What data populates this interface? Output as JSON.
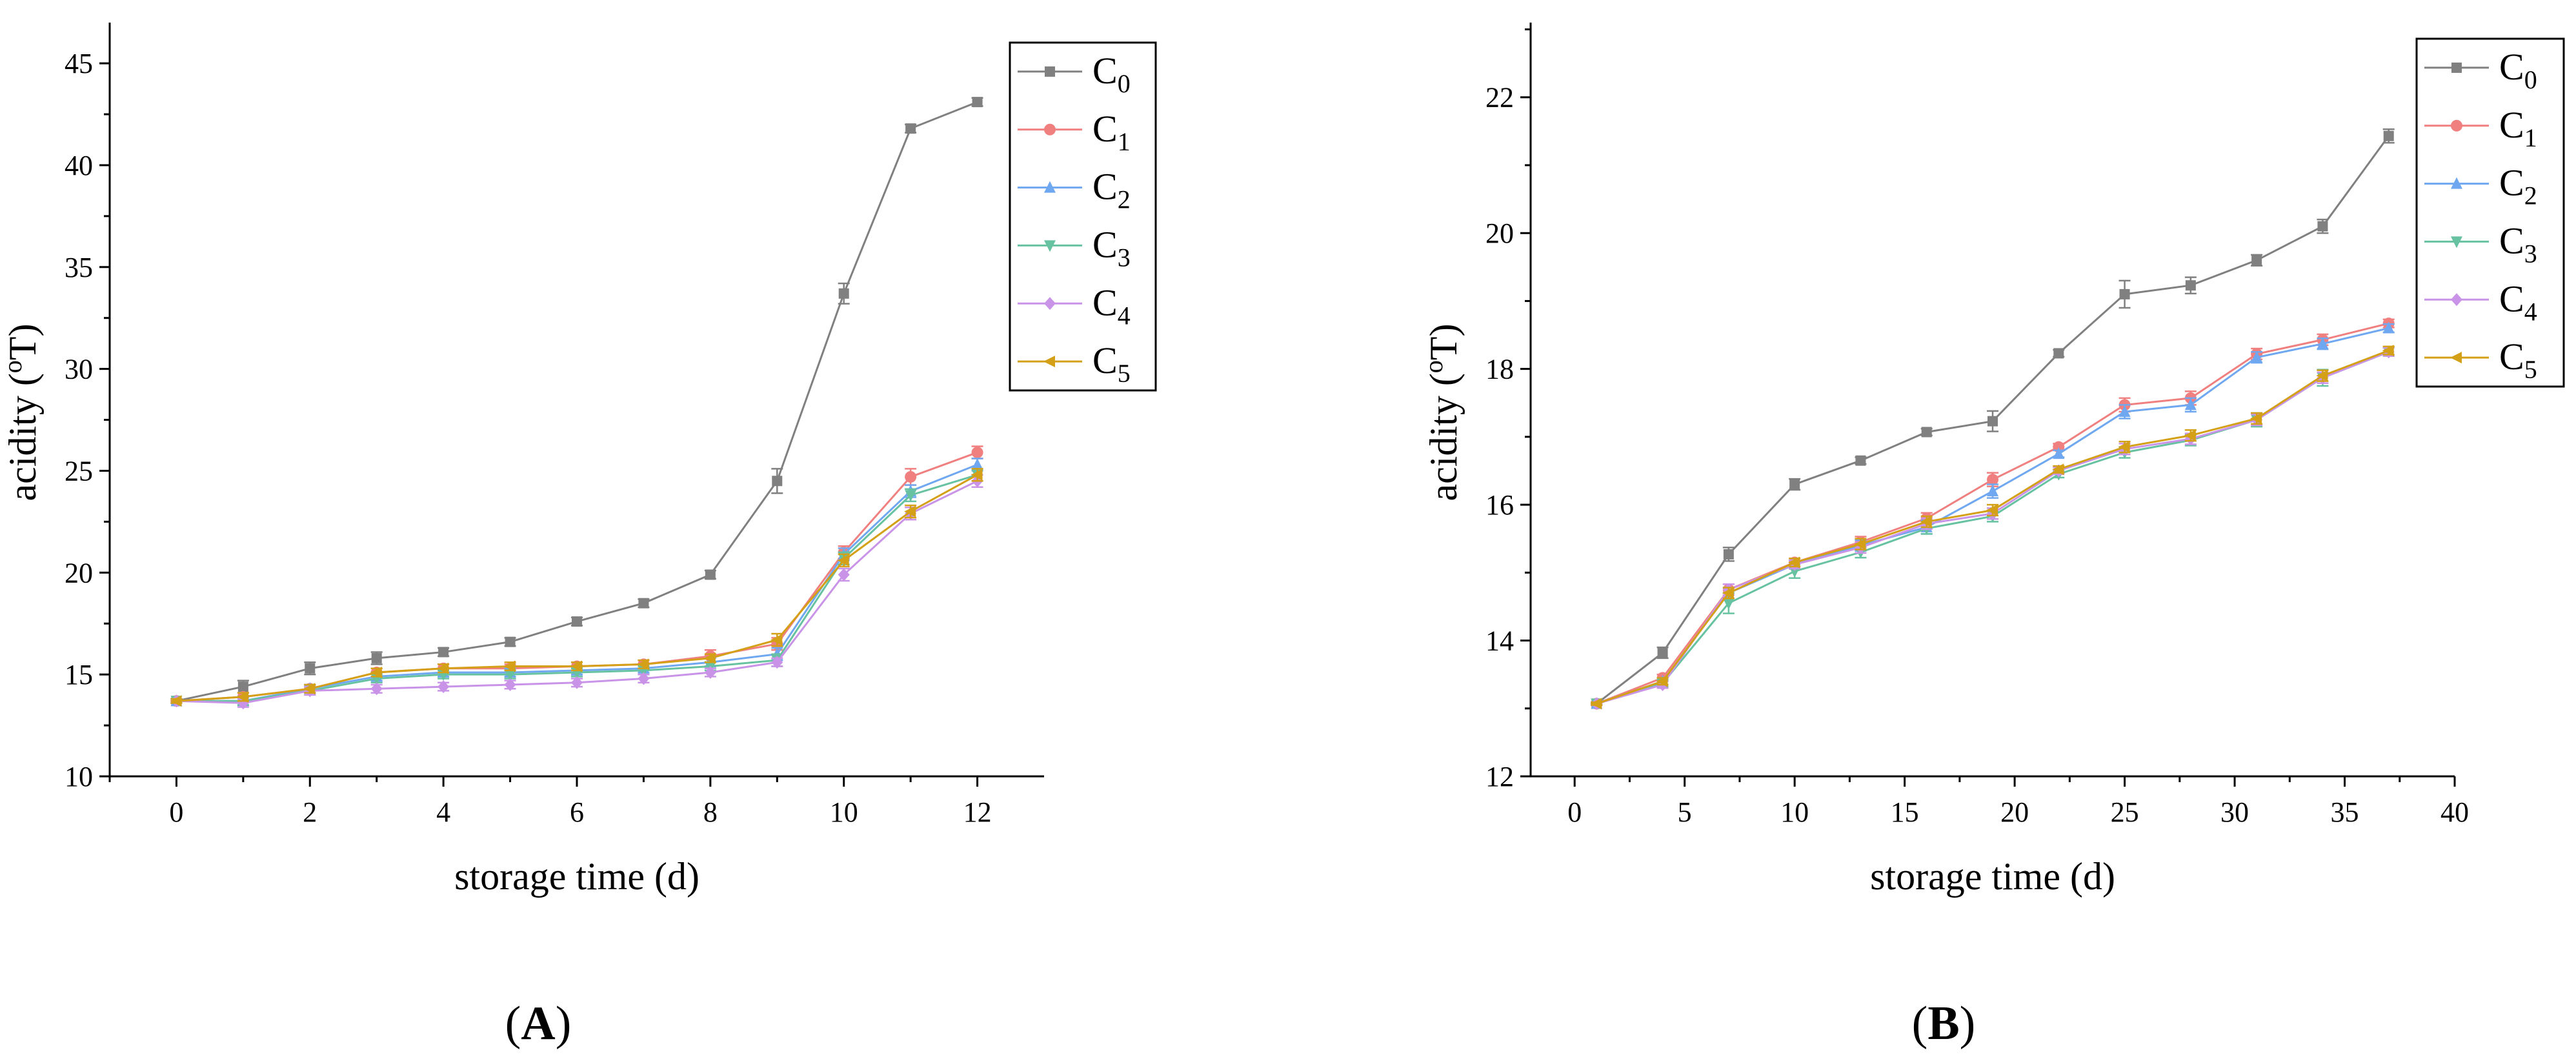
{
  "chart_data": [
    {
      "type": "line",
      "panel_label": "A",
      "xlabel": "storage time (d)",
      "ylabel_main": "acidity (",
      "ylabel_sup": "o",
      "ylabel_tail": "T)",
      "xlim": [
        -1,
        13
      ],
      "ylim": [
        10,
        47
      ],
      "xticks": [
        0,
        2,
        4,
        6,
        8,
        10,
        12
      ],
      "yticks": [
        10,
        15,
        20,
        25,
        30,
        35,
        40,
        45
      ],
      "x": [
        0,
        1,
        2,
        3,
        4,
        5,
        6,
        7,
        8,
        9,
        10,
        11,
        12
      ],
      "legend_position": "top-right",
      "series": [
        {
          "base": "C",
          "sub": "0",
          "color": "#808080",
          "marker": "square",
          "values": [
            13.7,
            14.4,
            15.3,
            15.8,
            16.1,
            16.6,
            17.6,
            18.5,
            19.9,
            24.5,
            33.7,
            41.8,
            43.1
          ],
          "errors": [
            0.1,
            0.3,
            0.3,
            0.3,
            0.2,
            0.2,
            0.2,
            0.2,
            0.2,
            0.6,
            0.5,
            0.2,
            0.2
          ]
        },
        {
          "base": "C",
          "sub": "1",
          "color": "#f08080",
          "marker": "circle",
          "values": [
            13.7,
            13.9,
            14.3,
            15.1,
            15.3,
            15.3,
            15.4,
            15.5,
            15.9,
            16.5,
            21.0,
            24.7,
            25.9
          ],
          "errors": [
            0.1,
            0.2,
            0.2,
            0.2,
            0.2,
            0.2,
            0.2,
            0.2,
            0.3,
            0.3,
            0.3,
            0.4,
            0.3
          ]
        },
        {
          "base": "C",
          "sub": "2",
          "color": "#6fa8f0",
          "marker": "triangle-up",
          "values": [
            13.7,
            13.7,
            14.3,
            14.9,
            15.1,
            15.1,
            15.2,
            15.3,
            15.6,
            16.0,
            20.9,
            24.0,
            25.3
          ],
          "errors": [
            0.1,
            0.2,
            0.2,
            0.2,
            0.2,
            0.2,
            0.2,
            0.2,
            0.2,
            0.3,
            0.3,
            0.3,
            0.3
          ]
        },
        {
          "base": "C",
          "sub": "3",
          "color": "#66c2a0",
          "marker": "triangle-down",
          "values": [
            13.7,
            13.7,
            14.2,
            14.8,
            15.0,
            15.0,
            15.1,
            15.2,
            15.4,
            15.7,
            20.7,
            23.8,
            24.8
          ],
          "errors": [
            0.1,
            0.2,
            0.2,
            0.2,
            0.2,
            0.2,
            0.2,
            0.2,
            0.2,
            0.3,
            0.3,
            0.3,
            0.3
          ]
        },
        {
          "base": "C",
          "sub": "4",
          "color": "#c994e8",
          "marker": "diamond",
          "values": [
            13.7,
            13.6,
            14.2,
            14.3,
            14.4,
            14.5,
            14.6,
            14.8,
            15.1,
            15.6,
            19.9,
            22.9,
            24.5
          ],
          "errors": [
            0.1,
            0.2,
            0.2,
            0.2,
            0.2,
            0.2,
            0.2,
            0.2,
            0.2,
            0.2,
            0.3,
            0.3,
            0.3
          ]
        },
        {
          "base": "C",
          "sub": "5",
          "color": "#d4a017",
          "marker": "triangle-left",
          "values": [
            13.7,
            13.9,
            14.3,
            15.1,
            15.3,
            15.4,
            15.4,
            15.5,
            15.8,
            16.7,
            20.6,
            23.0,
            24.8
          ],
          "errors": [
            0.1,
            0.2,
            0.2,
            0.2,
            0.2,
            0.2,
            0.2,
            0.2,
            0.2,
            0.3,
            0.3,
            0.3,
            0.3
          ]
        }
      ]
    },
    {
      "type": "line",
      "panel_label": "B",
      "xlabel": "storage time (d)",
      "ylabel_main": "acidity (",
      "ylabel_sup": "o",
      "ylabel_tail": "T)",
      "xlim": [
        -2,
        40
      ],
      "ylim": [
        12,
        23.1
      ],
      "xticks": [
        0,
        5,
        10,
        15,
        20,
        25,
        30,
        35,
        40
      ],
      "yticks": [
        12,
        14,
        16,
        18,
        20,
        22
      ],
      "x": [
        1,
        4,
        7,
        10,
        13,
        16,
        19,
        22,
        25,
        28,
        31,
        34,
        37
      ],
      "legend_position": "top-right",
      "series": [
        {
          "base": "C",
          "sub": "0",
          "color": "#808080",
          "marker": "square",
          "values": [
            13.07,
            13.82,
            15.27,
            16.3,
            16.65,
            17.07,
            17.23,
            18.23,
            19.1,
            19.23,
            19.6,
            20.1,
            21.43
          ],
          "errors": [
            0.02,
            0.08,
            0.1,
            0.08,
            0.05,
            0.05,
            0.15,
            0.05,
            0.2,
            0.12,
            0.08,
            0.1,
            0.1
          ]
        },
        {
          "base": "C",
          "sub": "1",
          "color": "#f08080",
          "marker": "circle",
          "values": [
            13.07,
            13.45,
            14.75,
            15.15,
            15.45,
            15.8,
            16.37,
            16.85,
            17.47,
            17.57,
            18.22,
            18.43,
            18.67
          ],
          "errors": [
            0.02,
            0.05,
            0.08,
            0.06,
            0.08,
            0.08,
            0.1,
            0.05,
            0.1,
            0.1,
            0.08,
            0.08,
            0.06
          ]
        },
        {
          "base": "C",
          "sub": "2",
          "color": "#6fa8f0",
          "marker": "triangle-up",
          "values": [
            13.07,
            13.4,
            14.7,
            15.12,
            15.4,
            15.67,
            16.2,
            16.75,
            17.37,
            17.47,
            18.17,
            18.37,
            18.6
          ],
          "errors": [
            0.02,
            0.05,
            0.08,
            0.06,
            0.08,
            0.1,
            0.1,
            0.05,
            0.1,
            0.1,
            0.08,
            0.08,
            0.06
          ]
        },
        {
          "base": "C",
          "sub": "3",
          "color": "#66c2a0",
          "marker": "triangle-down",
          "values": [
            13.07,
            13.37,
            14.55,
            15.02,
            15.3,
            15.65,
            15.83,
            16.45,
            16.77,
            16.95,
            17.25,
            17.87,
            18.25
          ],
          "errors": [
            0.02,
            0.05,
            0.15,
            0.1,
            0.08,
            0.08,
            0.08,
            0.05,
            0.08,
            0.08,
            0.1,
            0.12,
            0.06
          ]
        },
        {
          "base": "C",
          "sub": "4",
          "color": "#c994e8",
          "marker": "diamond",
          "values": [
            13.07,
            13.35,
            14.75,
            15.12,
            15.37,
            15.72,
            15.87,
            16.5,
            16.82,
            16.97,
            17.25,
            17.87,
            18.25
          ],
          "errors": [
            0.02,
            0.05,
            0.08,
            0.06,
            0.08,
            0.08,
            0.08,
            0.05,
            0.08,
            0.08,
            0.08,
            0.08,
            0.06
          ]
        },
        {
          "base": "C",
          "sub": "5",
          "color": "#d4a017",
          "marker": "triangle-left",
          "values": [
            13.07,
            13.4,
            14.7,
            15.15,
            15.42,
            15.75,
            15.92,
            16.52,
            16.85,
            17.02,
            17.27,
            17.9,
            18.27
          ],
          "errors": [
            0.02,
            0.05,
            0.08,
            0.06,
            0.08,
            0.08,
            0.08,
            0.05,
            0.08,
            0.08,
            0.08,
            0.08,
            0.06
          ]
        }
      ]
    }
  ]
}
